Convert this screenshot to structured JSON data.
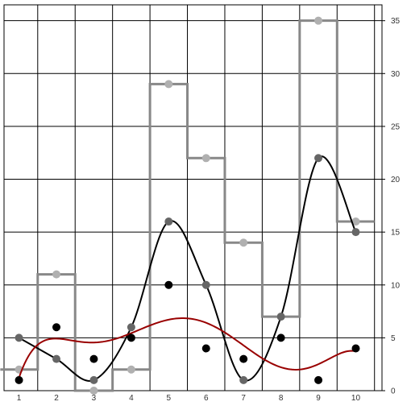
{
  "chart_data": {
    "type": "line",
    "title": "",
    "xlabel": "",
    "ylabel": "",
    "x": [
      1,
      2,
      3,
      4,
      5,
      6,
      7,
      8,
      9,
      10
    ],
    "xlim": [
      0.6,
      10.7
    ],
    "ylim": [
      0,
      36.5
    ],
    "xticks": [
      1,
      2,
      3,
      4,
      5,
      6,
      7,
      8,
      9,
      10
    ],
    "yticks": [
      0,
      5,
      10,
      15,
      20,
      25,
      30,
      35
    ],
    "y_axis_side": "right",
    "grid": true,
    "legend": "none",
    "series": [
      {
        "key": "step",
        "style": "step-mid",
        "color": "#888888",
        "marker_color": "#b0b0b0",
        "values": [
          2,
          11,
          0,
          2,
          29,
          22,
          14,
          7,
          35,
          16
        ]
      },
      {
        "key": "smooth",
        "style": "spline",
        "color": "#000000",
        "marker_color": "#666666",
        "values": [
          5,
          3,
          1,
          6,
          16,
          10,
          1,
          7,
          22,
          15
        ]
      },
      {
        "key": "scatter",
        "style": "markers+smooth-fit",
        "color": "#000000",
        "fit_color": "#990000",
        "values": [
          1,
          6,
          3,
          5,
          10,
          4,
          3,
          5,
          1,
          4
        ]
      }
    ]
  }
}
